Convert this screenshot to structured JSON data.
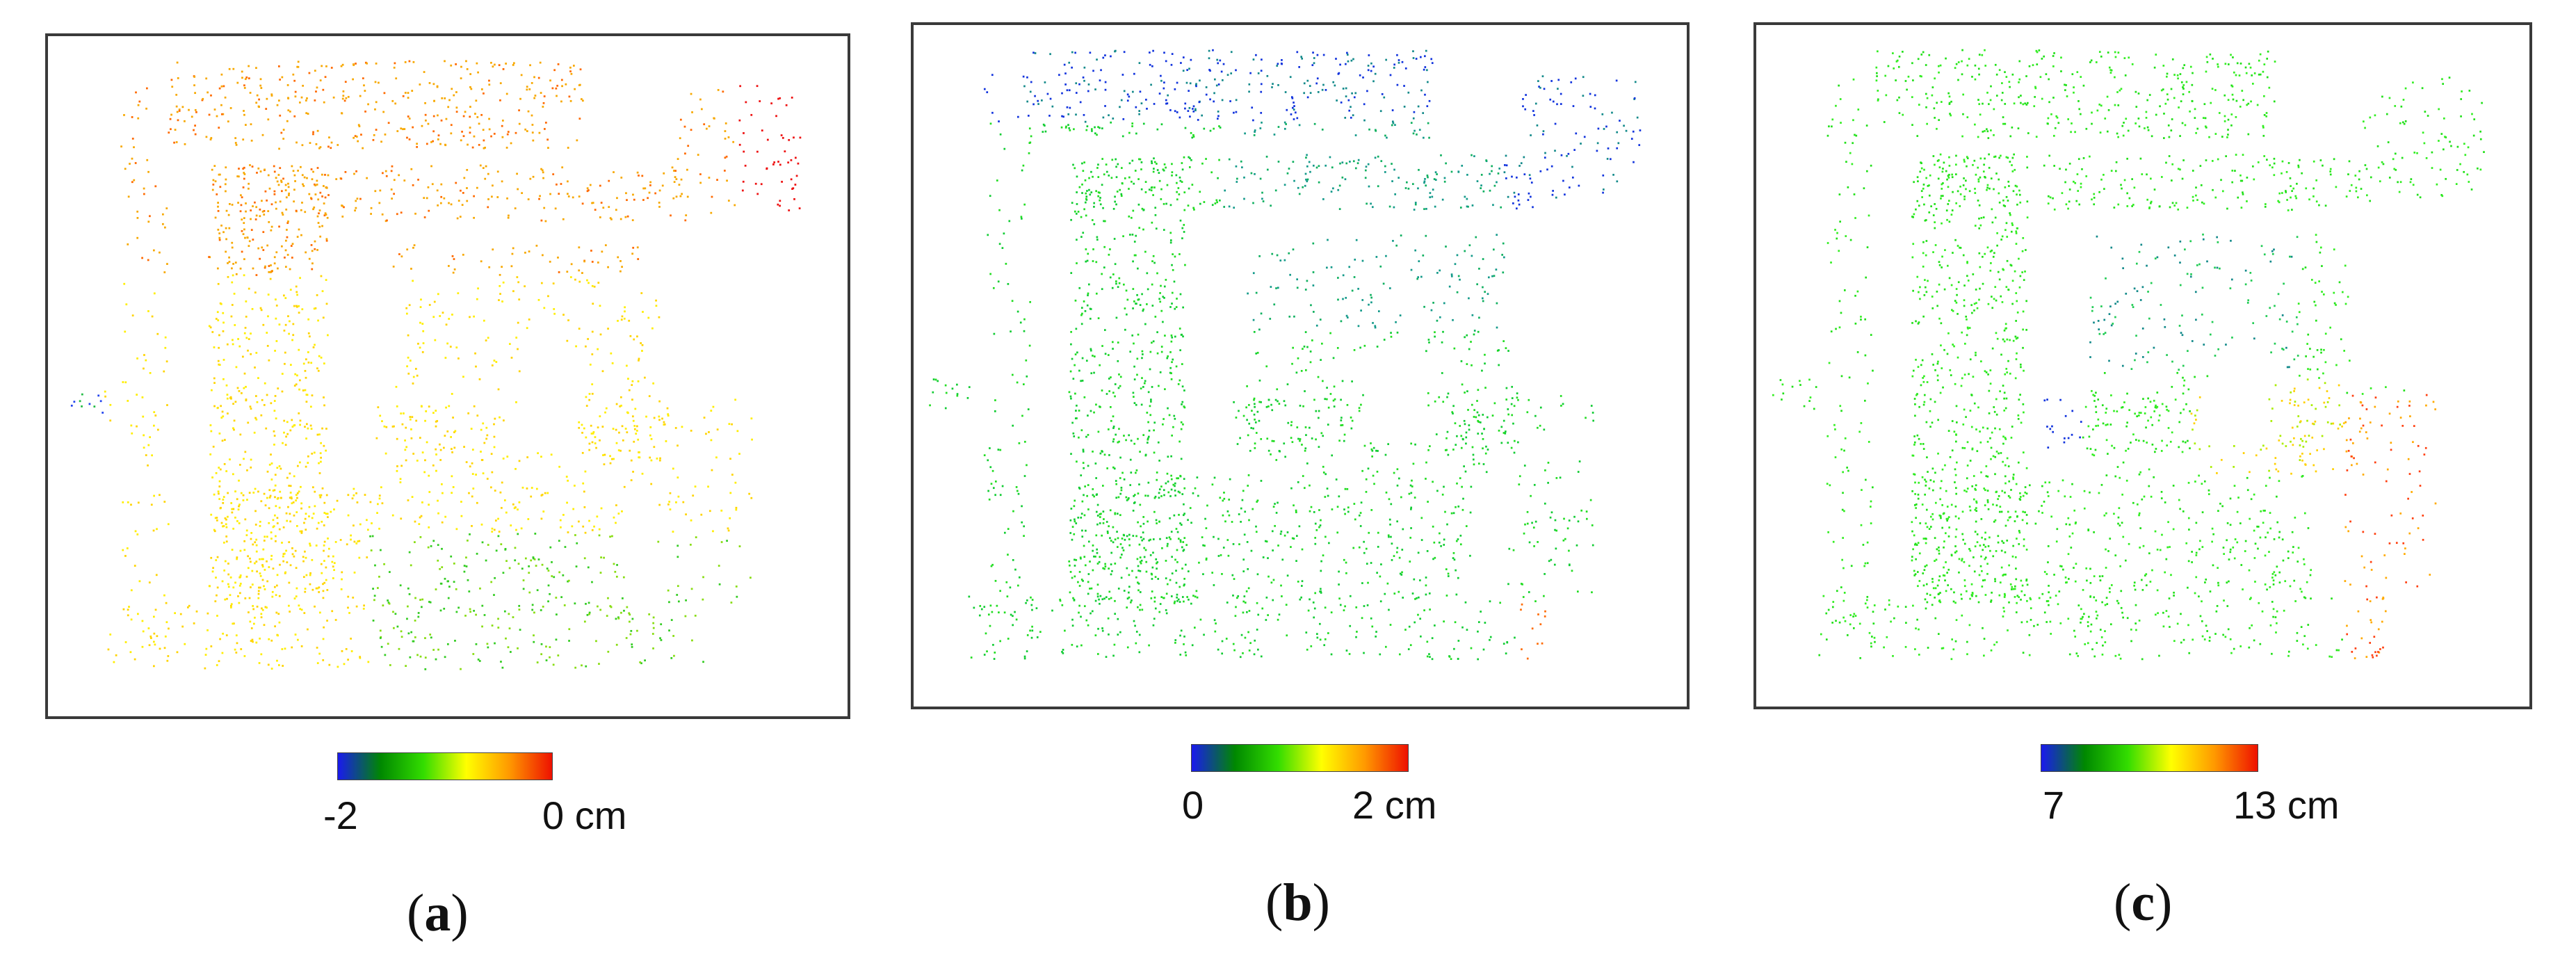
{
  "panels": [
    {
      "id": "a",
      "caption_letter": "a",
      "colorbar": {
        "min_label": "-2",
        "max_label": "0 cm",
        "min": -2,
        "max": 0,
        "unit": "cm"
      },
      "dominant_hue": "orange-yellow",
      "hot_spot": "top-right red cluster",
      "colors": {
        "main": "#f7a800",
        "hot": "#ee1111",
        "cool": "#2244ee"
      }
    },
    {
      "id": "b",
      "caption_letter": "b",
      "colorbar": {
        "min_label": "0",
        "max_label": "2 cm",
        "min": 0,
        "max": 2,
        "unit": "cm"
      },
      "dominant_hue": "green-cyan",
      "hot_spot": "top and top-right blue clusters",
      "colors": {
        "main": "#11cc33",
        "hot": "#1133dd",
        "cool": "#1133dd"
      }
    },
    {
      "id": "c",
      "caption_letter": "c",
      "colorbar": {
        "min_label": "7",
        "max_label": "13 cm",
        "min": 7,
        "max": 13,
        "unit": "cm"
      },
      "dominant_hue": "green",
      "hot_spot": "bottom-right orange-red cluster",
      "colors": {
        "main": "#22e01a",
        "hot": "#ff4010",
        "cool": "#1133dd"
      }
    }
  ],
  "colormap": [
    "#1a1aee",
    "#008800",
    "#33dd00",
    "#ffff00",
    "#ff9900",
    "#ee1100"
  ]
}
